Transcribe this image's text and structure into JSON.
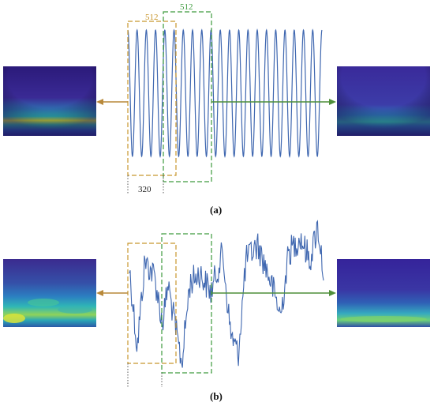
{
  "panels": [
    {
      "caption": "(a)",
      "window_labels": [
        "512",
        "512"
      ],
      "offset_label": "320"
    },
    {
      "caption": "(b)"
    }
  ],
  "colors": {
    "signal": "#3f67b0",
    "window_orange": "#c8962d",
    "window_green": "#3d9a3d",
    "arrow_orange": "#b8893a",
    "arrow_green": "#4f8f3a",
    "guide": "#555555",
    "scalogram_bg": "#3b1f8c"
  }
}
